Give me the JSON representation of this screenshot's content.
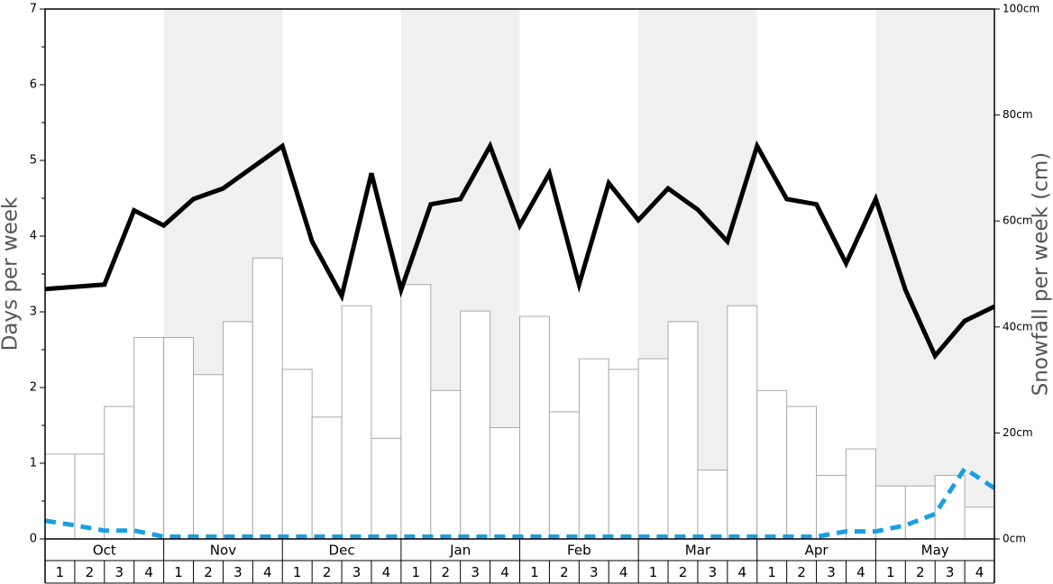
{
  "chart_data": {
    "type": "bar-line",
    "y_label": "Days per week",
    "y2_label": "Snowfall per week (cm)",
    "months": [
      "Oct",
      "Nov",
      "Dec",
      "Jan",
      "Feb",
      "Mar",
      "Apr",
      "May"
    ],
    "weeks": [
      1,
      2,
      3,
      4
    ],
    "ylim": [
      0,
      7
    ],
    "yticks": [
      0,
      1,
      2,
      3,
      4,
      5,
      6,
      7
    ],
    "y2lim": [
      0,
      100
    ],
    "y2ticks": [
      {
        "value": 0,
        "label": "0cm"
      },
      {
        "value": 20,
        "label": "20cm"
      },
      {
        "value": 40,
        "label": "40cm"
      },
      {
        "value": 60,
        "label": "60cm"
      },
      {
        "value": 80,
        "label": "80cm"
      },
      {
        "value": 100,
        "label": "100cm"
      }
    ],
    "bars": {
      "axis": "y2",
      "color": "#ffffff",
      "values": [
        16,
        16,
        25,
        38,
        38,
        31,
        41,
        53,
        32,
        23,
        44,
        19,
        48,
        28,
        43,
        21,
        42,
        24,
        34,
        32,
        34,
        41,
        13,
        44,
        28,
        25,
        12,
        17,
        10,
        10,
        12,
        6
      ]
    },
    "series": [
      {
        "color": "#000000",
        "dash": false,
        "values": [
          3.3,
          3.33,
          3.36,
          4.34,
          4.14,
          4.49,
          4.63,
          4.91,
          5.19,
          3.93,
          3.21,
          4.83,
          3.29,
          4.42,
          4.49,
          5.19,
          4.14,
          4.83,
          3.36,
          4.7,
          4.21,
          4.63,
          4.35,
          3.93,
          5.19,
          4.49,
          4.42,
          3.64,
          4.49,
          3.29,
          2.42,
          2.88,
          3.07
        ]
      },
      {
        "color": "#1a9fe0",
        "dash": true,
        "values": [
          0.24,
          0.18,
          0.11,
          0.11,
          0.03,
          0.03,
          0.03,
          0.03,
          0.03,
          0.03,
          0.03,
          0.03,
          0.03,
          0.03,
          0.03,
          0.03,
          0.03,
          0.03,
          0.03,
          0.03,
          0.03,
          0.03,
          0.03,
          0.03,
          0.03,
          0.03,
          0.03,
          0.1,
          0.1,
          0.18,
          0.33,
          0.93,
          0.67
        ]
      }
    ]
  }
}
